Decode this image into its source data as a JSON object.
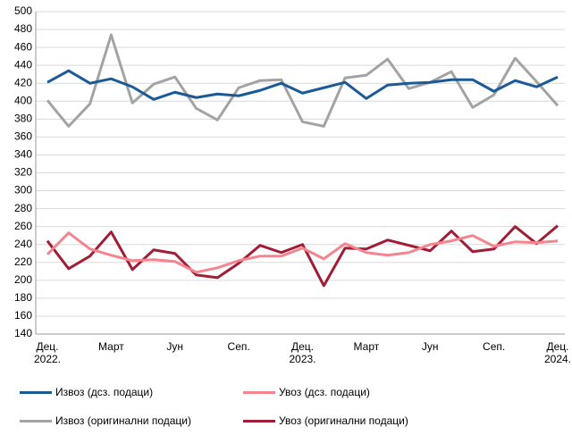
{
  "chart_data": {
    "type": "line",
    "categories": [
      "Дец. 2022.",
      null,
      null,
      "Март",
      null,
      null,
      "Јун",
      null,
      null,
      "Сеп.",
      null,
      null,
      "Дец. 2023.",
      null,
      null,
      "Март",
      null,
      null,
      "Јун",
      null,
      null,
      "Сеп.",
      null,
      null,
      "Дец. 2024."
    ],
    "series": [
      {
        "name": "Извоз (дсз. подаци)",
        "color": "#1b5a96",
        "values": [
          421,
          434,
          420,
          425,
          416,
          402,
          410,
          404,
          408,
          406,
          412,
          420,
          409,
          415,
          421,
          403,
          418,
          420,
          421,
          424,
          424,
          411,
          423,
          416,
          427
        ]
      },
      {
        "name": "Увоз (дсз. подаци)",
        "color": "#f4858e",
        "values": [
          229,
          253,
          235,
          228,
          222,
          223,
          221,
          209,
          214,
          222,
          227,
          227,
          236,
          224,
          241,
          231,
          228,
          231,
          240,
          244,
          250,
          238,
          243,
          242,
          244
        ]
      },
      {
        "name": "Извоз (оригинални подаци)",
        "color": "#a3a3a3",
        "values": [
          401,
          372,
          397,
          474,
          398,
          419,
          427,
          392,
          379,
          415,
          423,
          424,
          377,
          372,
          426,
          429,
          447,
          414,
          421,
          433,
          393,
          407,
          448,
          422,
          395
        ]
      },
      {
        "name": "Увоз (оригинални подаци)",
        "color": "#a11c36",
        "values": [
          244,
          213,
          227,
          254,
          212,
          234,
          230,
          206,
          203,
          219,
          239,
          231,
          240,
          194,
          236,
          235,
          245,
          239,
          233,
          255,
          232,
          235,
          260,
          241,
          261
        ]
      }
    ],
    "ylim": [
      140,
      500
    ],
    "yticks": [
      140,
      160,
      180,
      200,
      220,
      240,
      260,
      280,
      300,
      320,
      340,
      360,
      380,
      400,
      420,
      440,
      460,
      480,
      500
    ],
    "grid": true
  }
}
